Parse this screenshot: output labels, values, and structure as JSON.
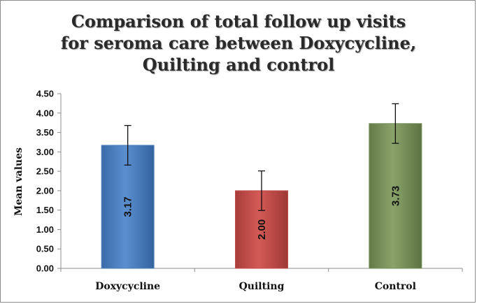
{
  "chart_data": {
    "type": "bar",
    "title": "Comparison of total follow up visits\nfor seroma care between Doxycycline,\nQuilting and control",
    "xlabel": "",
    "ylabel": "Mean values",
    "categories": [
      "Doxycycline",
      "Quilting",
      "Control"
    ],
    "values": [
      3.17,
      2.0,
      3.73
    ],
    "data_labels": [
      "3.17",
      "2.00",
      "3.73"
    ],
    "error_bars": [
      0.51,
      0.51,
      0.51
    ],
    "ylim": [
      0,
      4.5
    ],
    "yticks": [
      "0.00",
      "0.50",
      "1.00",
      "1.50",
      "2.00",
      "2.50",
      "3.00",
      "3.50",
      "4.00",
      "4.50"
    ],
    "colors": [
      "#4f81bd",
      "#c0504d",
      "#77905a"
    ],
    "grid": false,
    "legend": "none"
  }
}
